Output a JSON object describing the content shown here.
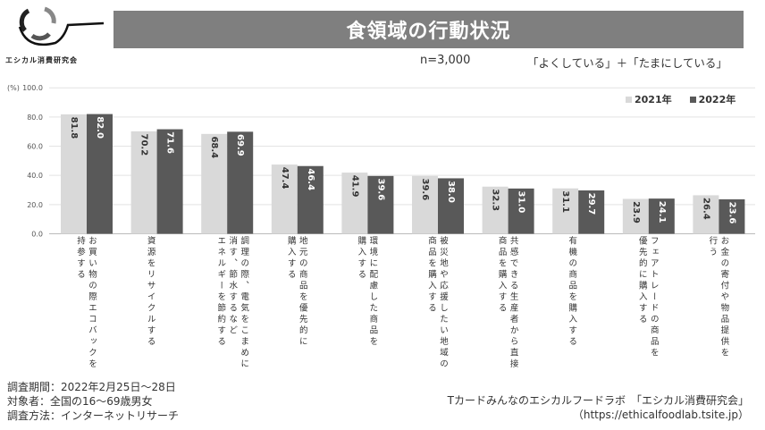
{
  "header": {
    "title": "食領域の行動状況",
    "logo_text": "エシカル消費研究会",
    "sample": "n=3,000",
    "condition": "「よくしている」＋「たまにしている」"
  },
  "colors": {
    "y2021": "#d9d9d9",
    "y2022": "#595959",
    "title_bg": "#7f7f7f"
  },
  "chart_data": {
    "type": "bar",
    "ylabel": "(%)",
    "ylim": [
      0,
      100
    ],
    "yticks": [
      "0.0",
      "20.0",
      "40.0",
      "60.0",
      "80.0",
      "100.0"
    ],
    "grid": true,
    "legend_position": "top-right",
    "categories": [
      "お買い物の際エコバックを\n持参する",
      "資源をリサイクルする",
      "調理の際、電気をこまめに\n消す、節水するなど\nエネルギーを節約する",
      "地元の商品を優先的に\n購入する",
      "環境に配慮した商品を\n購入する",
      "被災地や応援したい地域の\n商品を購入する",
      "共感できる生産者から直接\n商品を購入する",
      "有機の商品を購入する",
      "フェアトレードの商品を\n優先的に購入する",
      "お金の寄付や物品提供を\n行う"
    ],
    "series": [
      {
        "name": "2021年",
        "values": [
          81.8,
          70.2,
          68.4,
          47.4,
          41.9,
          39.6,
          32.3,
          31.1,
          23.9,
          26.4
        ],
        "labels": [
          "81.8",
          "70.2",
          "68.4",
          "47.4",
          "41.9",
          "39.6",
          "32.3",
          "31.1",
          "23.9",
          "26.4"
        ]
      },
      {
        "name": "2022年",
        "values": [
          82.0,
          71.6,
          69.9,
          46.4,
          39.6,
          38.0,
          31.0,
          29.7,
          24.1,
          23.6
        ],
        "labels": [
          "82.0",
          "71.6",
          "69.9",
          "46.4",
          "39.6",
          "38.0",
          "31.0",
          "29.7",
          "24.1",
          "23.6"
        ]
      }
    ]
  },
  "footer": {
    "period": "調査期間：2022年2月25日～28日",
    "target": "対象者：全国の16～69歳男女",
    "method": "調査方法：インターネットリサーチ",
    "source": "Tカードみんなのエシカルフードラボ　「エシカル消費研究会」",
    "url": "（https://ethicalfoodlab.tsite.jp）"
  }
}
